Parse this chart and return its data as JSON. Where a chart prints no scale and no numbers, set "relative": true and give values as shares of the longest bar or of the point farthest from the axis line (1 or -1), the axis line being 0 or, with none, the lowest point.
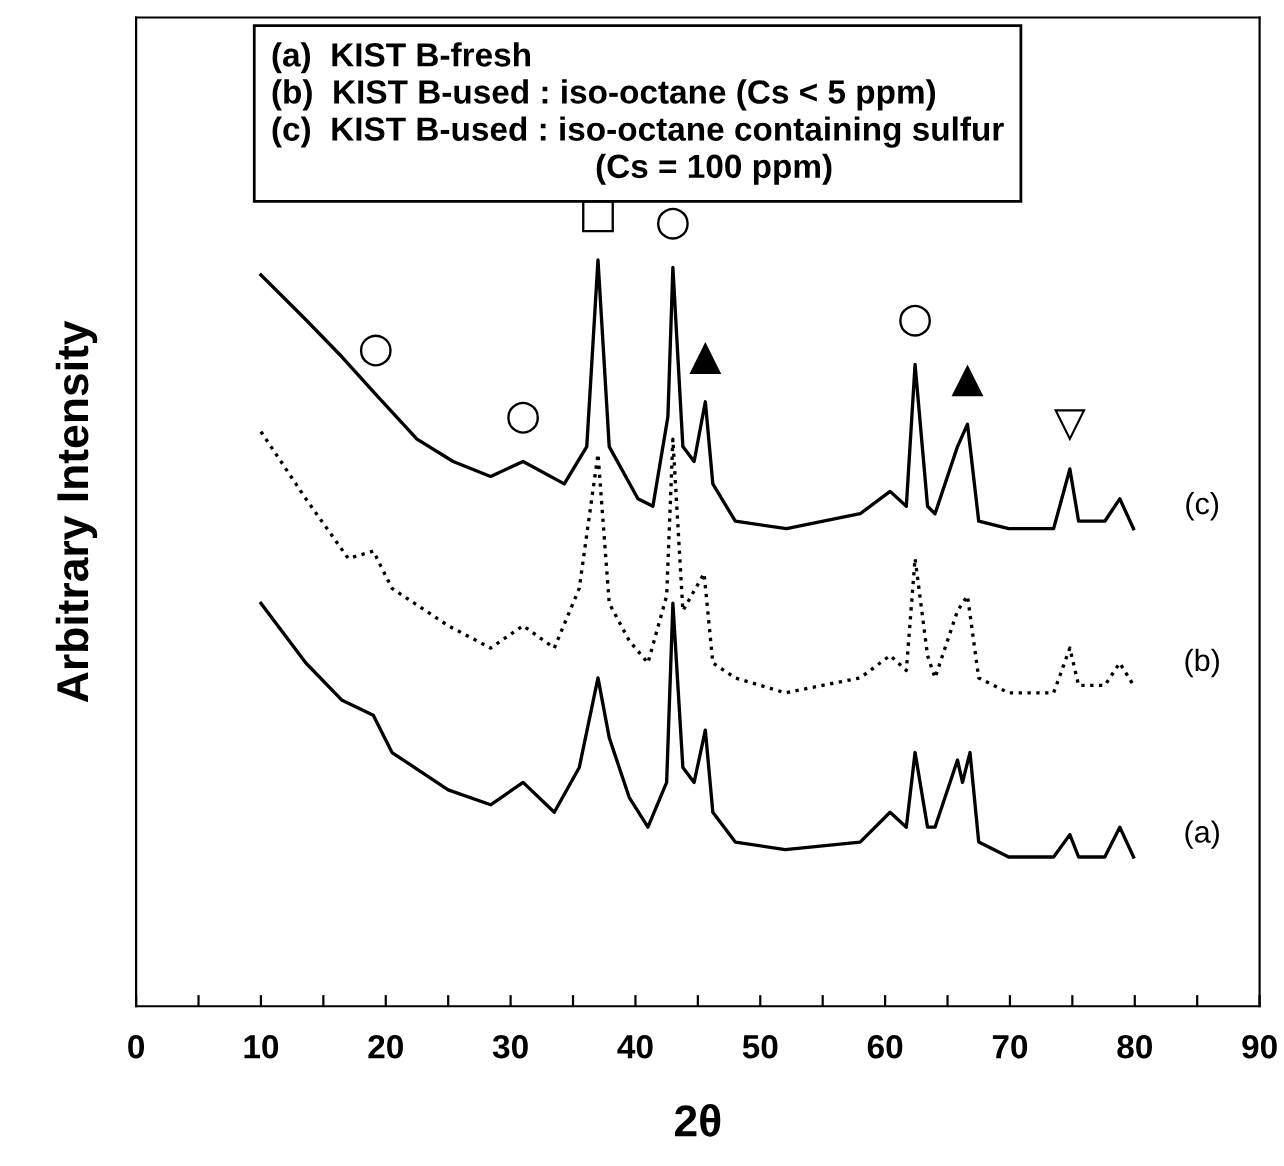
{
  "chart_data": {
    "type": "line",
    "relative": true,
    "xlabel": "2θ",
    "ylabel": "Arbitrary Intensity",
    "xlim": [
      0,
      90
    ],
    "xticks": [
      0,
      {
        "value": 5,
        "label": null
      },
      10,
      {
        "value": 15,
        "label": null
      },
      20,
      {
        "value": 25,
        "label": null
      },
      30,
      {
        "value": 35,
        "label": null
      },
      40,
      {
        "value": 45,
        "label": null
      },
      50,
      {
        "value": 55,
        "label": null
      },
      60,
      {
        "value": 65,
        "label": null
      },
      70,
      {
        "value": 75,
        "label": null
      },
      80,
      {
        "value": 85,
        "label": null
      },
      90
    ],
    "grid": false,
    "legend": false,
    "marker": "none",
    "series": [
      {
        "name": "(c)",
        "color": "#000000",
        "line_style": "solid",
        "x": [
          10,
          13.6,
          16.5,
          19.2,
          22.5,
          25.4,
          28.4,
          31,
          34.3,
          36.1,
          37,
          37.9,
          40.2,
          41.4,
          42.6,
          43,
          43.8,
          44.7,
          45.6,
          46.2,
          48,
          52.1,
          58,
          60.4,
          61.7,
          62.4,
          63.4,
          64,
          65.8,
          66.6,
          67.5,
          69.9,
          73.5,
          74.8,
          75.5,
          77.6,
          78.8,
          79.9
        ],
        "values": [
          0.98,
          0.92,
          0.87,
          0.82,
          0.76,
          0.73,
          0.71,
          0.73,
          0.7,
          0.75,
          1.0,
          0.75,
          0.68,
          0.67,
          0.79,
          0.99,
          0.75,
          0.73,
          0.81,
          0.7,
          0.65,
          0.64,
          0.66,
          0.69,
          0.67,
          0.86,
          0.67,
          0.66,
          0.75,
          0.78,
          0.65,
          0.64,
          0.64,
          0.72,
          0.65,
          0.65,
          0.68,
          0.64
        ]
      },
      {
        "name": "(b)",
        "color": "#000000",
        "line_style": "dotted",
        "x": [
          10,
          13.6,
          17,
          19,
          20.5,
          25,
          28.4,
          31,
          33.5,
          35.5,
          37,
          37.9,
          39.5,
          41,
          42.5,
          43,
          43.8,
          45.5,
          46.2,
          48,
          52,
          58,
          60.4,
          61.7,
          62.4,
          63.4,
          64,
          65.8,
          66.6,
          67.5,
          69.9,
          73.5,
          74.8,
          75.5,
          77.6,
          78.8,
          79.9
        ],
        "values": [
          0.77,
          0.68,
          0.6,
          0.61,
          0.56,
          0.51,
          0.48,
          0.51,
          0.48,
          0.56,
          0.74,
          0.54,
          0.49,
          0.46,
          0.55,
          0.76,
          0.53,
          0.58,
          0.46,
          0.44,
          0.42,
          0.44,
          0.47,
          0.45,
          0.6,
          0.47,
          0.44,
          0.53,
          0.55,
          0.44,
          0.42,
          0.42,
          0.48,
          0.43,
          0.43,
          0.46,
          0.43
        ]
      },
      {
        "name": "(a)",
        "color": "#000000",
        "line_style": "solid",
        "x": [
          10,
          13.6,
          16.5,
          19,
          20.5,
          25,
          28.4,
          31,
          33.5,
          35.5,
          37,
          37.9,
          39.5,
          41,
          42.5,
          43,
          43.8,
          44.7,
          45.6,
          46.2,
          48,
          52,
          58,
          60.4,
          61.7,
          62.4,
          63.4,
          64,
          65.8,
          66.2,
          66.8,
          67.5,
          69.9,
          73.5,
          74.8,
          75.5,
          77.6,
          78.8,
          79.9
        ],
        "values": [
          0.54,
          0.46,
          0.41,
          0.39,
          0.34,
          0.29,
          0.27,
          0.3,
          0.26,
          0.32,
          0.44,
          0.36,
          0.28,
          0.24,
          0.3,
          0.54,
          0.32,
          0.3,
          0.37,
          0.26,
          0.22,
          0.21,
          0.22,
          0.26,
          0.24,
          0.34,
          0.24,
          0.24,
          0.33,
          0.3,
          0.34,
          0.22,
          0.2,
          0.2,
          0.23,
          0.2,
          0.2,
          0.24,
          0.2
        ]
      }
    ],
    "annotations": [
      "(a)  KIST B-fresh\n(b)  KIST B-used : iso-octane (Cs < 5 ppm)\n(c)  KIST B-used : iso-octane containing sulfur\n                                   (Cs = 100 ppm)",
      {
        "text": "□",
        "x": 37,
        "y": 1.0
      },
      {
        "text": "○",
        "x": 19.2,
        "y": 0.82
      },
      {
        "text": "○",
        "x": 31,
        "y": 0.73
      },
      {
        "text": "○",
        "x": 43,
        "y": 0.99
      },
      {
        "text": "○",
        "x": 62.4,
        "y": 0.86
      },
      {
        "text": "▲",
        "x": 45.6,
        "y": 0.81
      },
      {
        "text": "▲",
        "x": 66.6,
        "y": 0.78
      },
      {
        "text": "▽",
        "x": 74.8,
        "y": 0.72
      }
    ]
  }
}
